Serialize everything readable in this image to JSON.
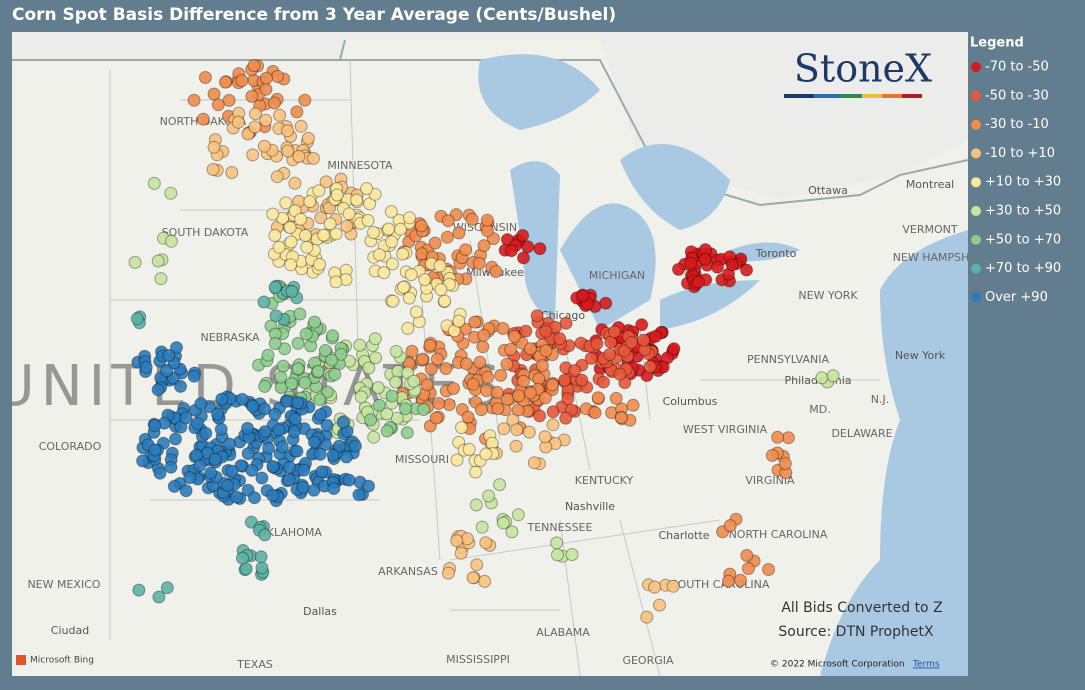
{
  "header": {
    "title": "Corn Spot Basis Difference from 3 Year Average (Cents/Bushel)"
  },
  "logo": "StoneX",
  "legend": {
    "title": "Legend",
    "items": [
      {
        "label": "-70 to -50",
        "color": "#d7191c"
      },
      {
        "label": "-50 to -30",
        "color": "#e8573a"
      },
      {
        "label": "-30 to -10",
        "color": "#f08c4e"
      },
      {
        "label": "-10 to +10",
        "color": "#f8c27e"
      },
      {
        "label": "+10 to +30",
        "color": "#fbe89c"
      },
      {
        "label": "+30 to +50",
        "color": "#c6e6a0"
      },
      {
        "label": "+50 to +70",
        "color": "#8ecd8e"
      },
      {
        "label": "+70 to +90",
        "color": "#5cb2a5"
      },
      {
        "label": "Over +90",
        "color": "#2b7bba"
      }
    ]
  },
  "map_labels": [
    "UNITED STATES",
    "NORTH DAKOTA",
    "MINNESOTA",
    "SOUTH DAKOTA",
    "WISCONSIN",
    "NEBRASKA",
    "COLORADO",
    "MISSOURI",
    "KENTUCKY",
    "OKLAHOMA",
    "TENNESSEE",
    "ARKANSAS",
    "NEW MEXICO",
    "TEXAS",
    "MISSISSIPPI",
    "ALABAMA",
    "GEORGIA",
    "SOUTH CAROLINA",
    "NORTH CAROLINA",
    "VIRGINIA",
    "WEST VIRGINIA",
    "PENNSYLVANIA",
    "NEW YORK",
    "MICHIGAN",
    "VERMONT",
    "NEW HAMPSHIRE",
    "MD.",
    "DELAWARE",
    "N.J.",
    "Ottawa",
    "Montreal",
    "Toronto",
    "Chicago",
    "Milwaukee",
    "Columbus",
    "Nashville",
    "Charlotte",
    "Dallas",
    "Philadelphia",
    "New York",
    "Ciudad"
  ],
  "notes": [
    "All Bids Converted to Z",
    "Source: DTN ProphetX"
  ],
  "attribution": {
    "bing": "Microsoft Bing",
    "copyright": "© 2022 Microsoft Corporation",
    "terms": "Terms"
  }
}
